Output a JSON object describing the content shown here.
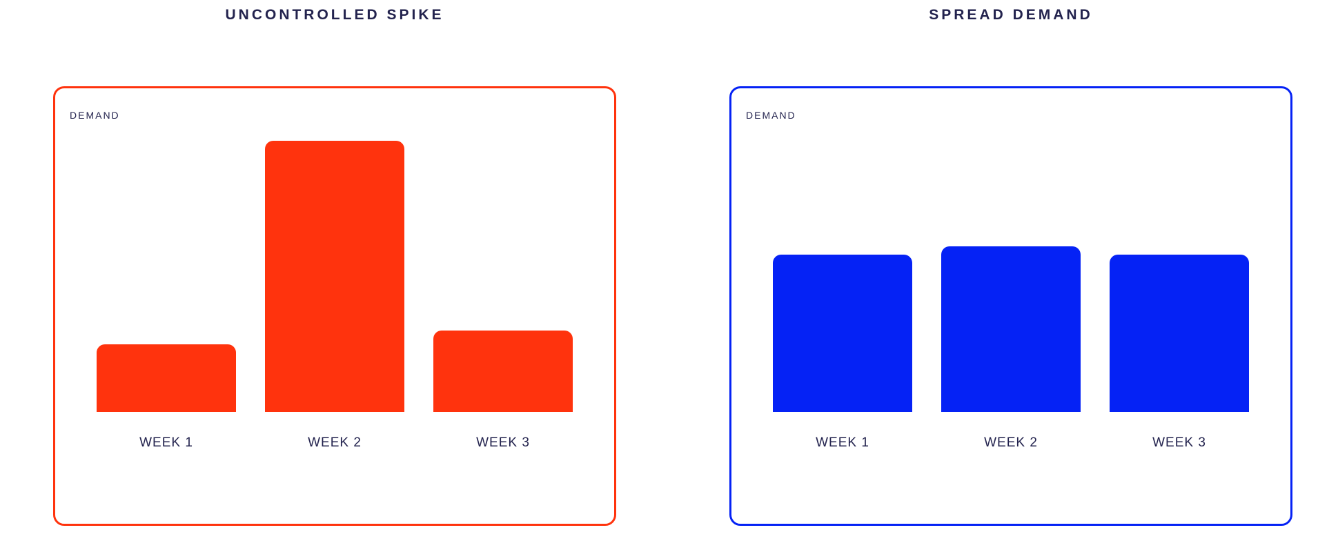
{
  "page": {
    "background": "#FFFFFF",
    "text_color": "#23234E"
  },
  "chart_data": [
    {
      "type": "bar",
      "title": "UNCONTROLLED SPIKE",
      "ylabel": "DEMAND",
      "xlabel": "",
      "categories": [
        "WEEK 1",
        "WEEK 2",
        "WEEK 3"
      ],
      "values": [
        25,
        100,
        30
      ],
      "ylim": [
        0,
        110
      ],
      "grid": false,
      "legend": "none",
      "bar_color": "#FF330D",
      "frame_color": "#FF330D",
      "value_units": "relative demand, peak spike week = 100"
    },
    {
      "type": "bar",
      "title": "SPREAD DEMAND",
      "ylabel": "DEMAND",
      "xlabel": "",
      "categories": [
        "WEEK 1",
        "WEEK 2",
        "WEEK 3"
      ],
      "values": [
        58,
        61,
        58
      ],
      "ylim": [
        0,
        110
      ],
      "grid": false,
      "legend": "none",
      "bar_color": "#0522F5",
      "frame_color": "#0522F5",
      "value_units": "relative demand, same scale as left chart"
    }
  ]
}
